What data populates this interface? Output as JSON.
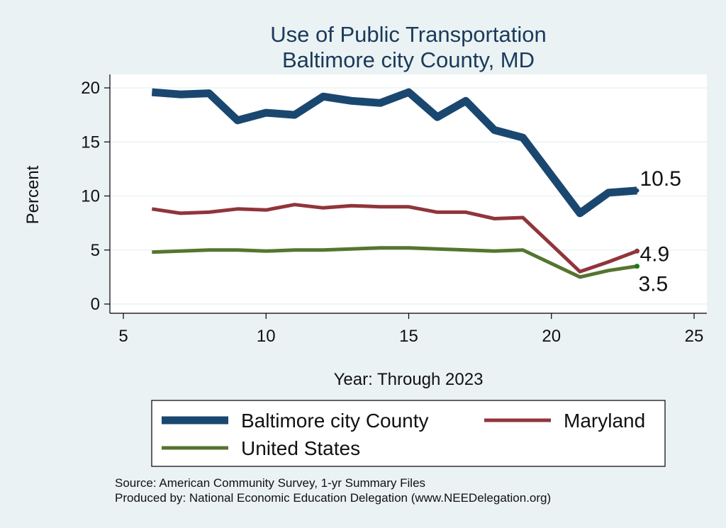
{
  "chart_data": {
    "type": "line",
    "title": "Use of Public Transportation",
    "subtitle": "Baltimore city County, MD",
    "xlabel": "Year: Through 2023",
    "ylabel": "Percent",
    "xlim": [
      5,
      25
    ],
    "ylim": [
      0,
      20
    ],
    "xticks": [
      5,
      10,
      15,
      20,
      25
    ],
    "yticks": [
      0,
      5,
      10,
      15,
      20
    ],
    "grid": "horizontal",
    "x": [
      6,
      7,
      8,
      9,
      10,
      11,
      12,
      13,
      14,
      15,
      16,
      17,
      18,
      19,
      21,
      22,
      23
    ],
    "series": [
      {
        "name": "Baltimore city County",
        "color": "#1a476f",
        "values": [
          19.6,
          19.4,
          19.5,
          17.0,
          17.7,
          17.5,
          19.2,
          18.8,
          18.6,
          19.6,
          17.3,
          18.8,
          16.1,
          15.4,
          8.4,
          10.3,
          10.5
        ],
        "end_label": "10.5"
      },
      {
        "name": "Maryland",
        "color": "#90353b",
        "values": [
          8.8,
          8.4,
          8.5,
          8.8,
          8.7,
          9.2,
          8.9,
          9.1,
          9.0,
          9.0,
          8.5,
          8.5,
          7.9,
          8.0,
          3.0,
          3.9,
          4.9
        ],
        "end_label": "4.9"
      },
      {
        "name": "United States",
        "color": "#55752f",
        "values": [
          4.8,
          4.9,
          5.0,
          5.0,
          4.9,
          5.0,
          5.0,
          5.1,
          5.2,
          5.2,
          5.1,
          5.0,
          4.9,
          5.0,
          2.5,
          3.1,
          3.5
        ],
        "end_label": "3.5"
      }
    ],
    "legend": {
      "position": "bottom",
      "entries": [
        "Baltimore city County",
        "Maryland",
        "United States"
      ]
    }
  },
  "notes": {
    "source": "Source: American Community Survey, 1-yr Summary Files",
    "produced_by": "Produced by: National Economic Education Delegation (www.NEEDelegation.org)"
  }
}
